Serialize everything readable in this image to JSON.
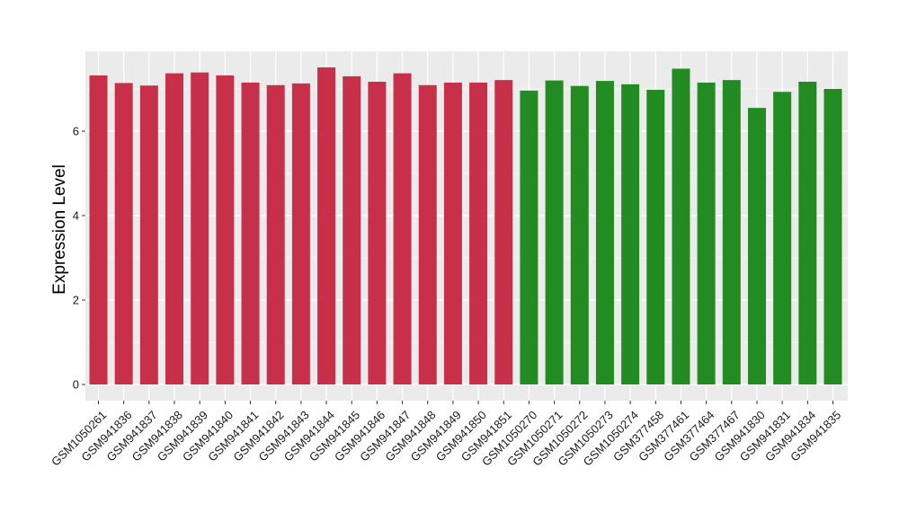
{
  "chart_data": {
    "type": "bar",
    "title": "",
    "xlabel": "",
    "ylabel": "Expression Level",
    "ylim": [
      0,
      7.8
    ],
    "yticks": [
      0,
      2,
      4,
      6
    ],
    "grid": true,
    "legend": "none",
    "colors": {
      "group1": "#c8304a",
      "group2": "#228b22",
      "panel": "#ebebeb",
      "gridline": "#ffffff"
    },
    "categories": [
      "GSM1050261",
      "GSM941836",
      "GSM941837",
      "GSM941838",
      "GSM941839",
      "GSM941840",
      "GSM941841",
      "GSM941842",
      "GSM941843",
      "GSM941844",
      "GSM941845",
      "GSM941846",
      "GSM941847",
      "GSM941848",
      "GSM941849",
      "GSM941850",
      "GSM941851",
      "GSM1050270",
      "GSM1050271",
      "GSM1050272",
      "GSM1050273",
      "GSM1050274",
      "GSM377458",
      "GSM377461",
      "GSM377464",
      "GSM377467",
      "GSM941830",
      "GSM941831",
      "GSM941834",
      "GSM941835"
    ],
    "values": [
      7.32,
      7.14,
      7.08,
      7.37,
      7.39,
      7.32,
      7.15,
      7.09,
      7.13,
      7.51,
      7.3,
      7.17,
      7.37,
      7.09,
      7.15,
      7.15,
      7.21,
      6.96,
      7.2,
      7.07,
      7.19,
      7.11,
      6.98,
      7.48,
      7.15,
      7.21,
      6.55,
      6.93,
      7.17,
      7.0
    ],
    "groups": [
      1,
      1,
      1,
      1,
      1,
      1,
      1,
      1,
      1,
      1,
      1,
      1,
      1,
      1,
      1,
      1,
      1,
      2,
      2,
      2,
      2,
      2,
      2,
      2,
      2,
      2,
      2,
      2,
      2,
      2
    ]
  }
}
